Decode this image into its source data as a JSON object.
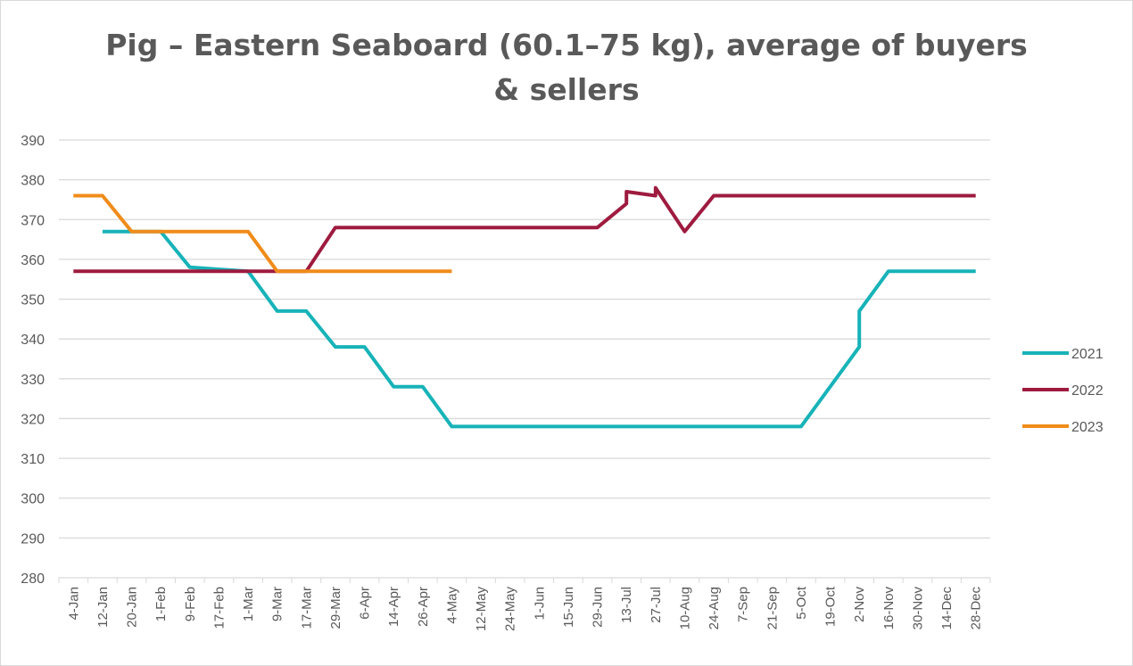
{
  "chart_data": {
    "type": "line",
    "title": "Pig – Eastern Seaboard (60.1–75 kg), average of buyers & sellers",
    "title_lines": [
      "Pig – Eastern Seaboard (60.1–75 kg), average of buyers",
      "& sellers"
    ],
    "xlabel": "",
    "ylabel": "",
    "ylim": [
      280,
      390
    ],
    "yticks": [
      390,
      380,
      370,
      360,
      350,
      340,
      330,
      320,
      310,
      300,
      290,
      280
    ],
    "x_tick_labels": [
      "4-Jan",
      "12-Jan",
      "20-Jan",
      "1-Feb",
      "9-Feb",
      "17-Feb",
      "1-Mar",
      "9-Mar",
      "17-Mar",
      "29-Mar",
      "6-Apr",
      "14-Apr",
      "26-Apr",
      "4-May",
      "12-May",
      "24-May",
      "1-Jun",
      "15-Jun",
      "29-Jun",
      "13-Jul",
      "27-Jul",
      "10-Aug",
      "24-Aug",
      "7-Sep",
      "21-Sep",
      "5-Oct",
      "19-Oct",
      "2-Nov",
      "16-Nov",
      "30-Nov",
      "14-Dec",
      "28-Dec"
    ],
    "grid": true,
    "legend_position": "right",
    "series": [
      {
        "name": "2021",
        "color": "#17B3B8",
        "points": [
          [
            "12-Jan",
            367
          ],
          [
            "1-Feb",
            367
          ],
          [
            "9-Feb",
            358
          ],
          [
            "1-Mar",
            357
          ],
          [
            "9-Mar",
            347
          ],
          [
            "17-Mar",
            347
          ],
          [
            "29-Mar",
            338
          ],
          [
            "6-Apr",
            338
          ],
          [
            "14-Apr",
            328
          ],
          [
            "26-Apr",
            328
          ],
          [
            "4-May",
            318
          ],
          [
            "5-Oct",
            318
          ],
          [
            "19-Oct",
            328
          ],
          [
            "19-Oct",
            328
          ],
          [
            "2-Nov",
            338
          ],
          [
            "2-Nov",
            347
          ],
          [
            "16-Nov",
            357
          ],
          [
            "28-Dec",
            357
          ]
        ]
      },
      {
        "name": "2022",
        "color": "#9E1B3F",
        "points": [
          [
            "4-Jan",
            357
          ],
          [
            "17-Mar",
            357
          ],
          [
            "29-Mar",
            368
          ],
          [
            "29-Jun",
            368
          ],
          [
            "13-Jul",
            374
          ],
          [
            "13-Jul",
            377
          ],
          [
            "27-Jul",
            376
          ],
          [
            "27-Jul",
            378
          ],
          [
            "10-Aug",
            367
          ],
          [
            "10-Aug",
            367
          ],
          [
            "24-Aug",
            376
          ],
          [
            "28-Dec",
            376
          ]
        ]
      },
      {
        "name": "2023",
        "color": "#F08C1A",
        "points": [
          [
            "4-Jan",
            376
          ],
          [
            "12-Jan",
            376
          ],
          [
            "20-Jan",
            367
          ],
          [
            "1-Mar",
            367
          ],
          [
            "9-Mar",
            357
          ],
          [
            "4-May",
            357
          ]
        ]
      }
    ]
  }
}
